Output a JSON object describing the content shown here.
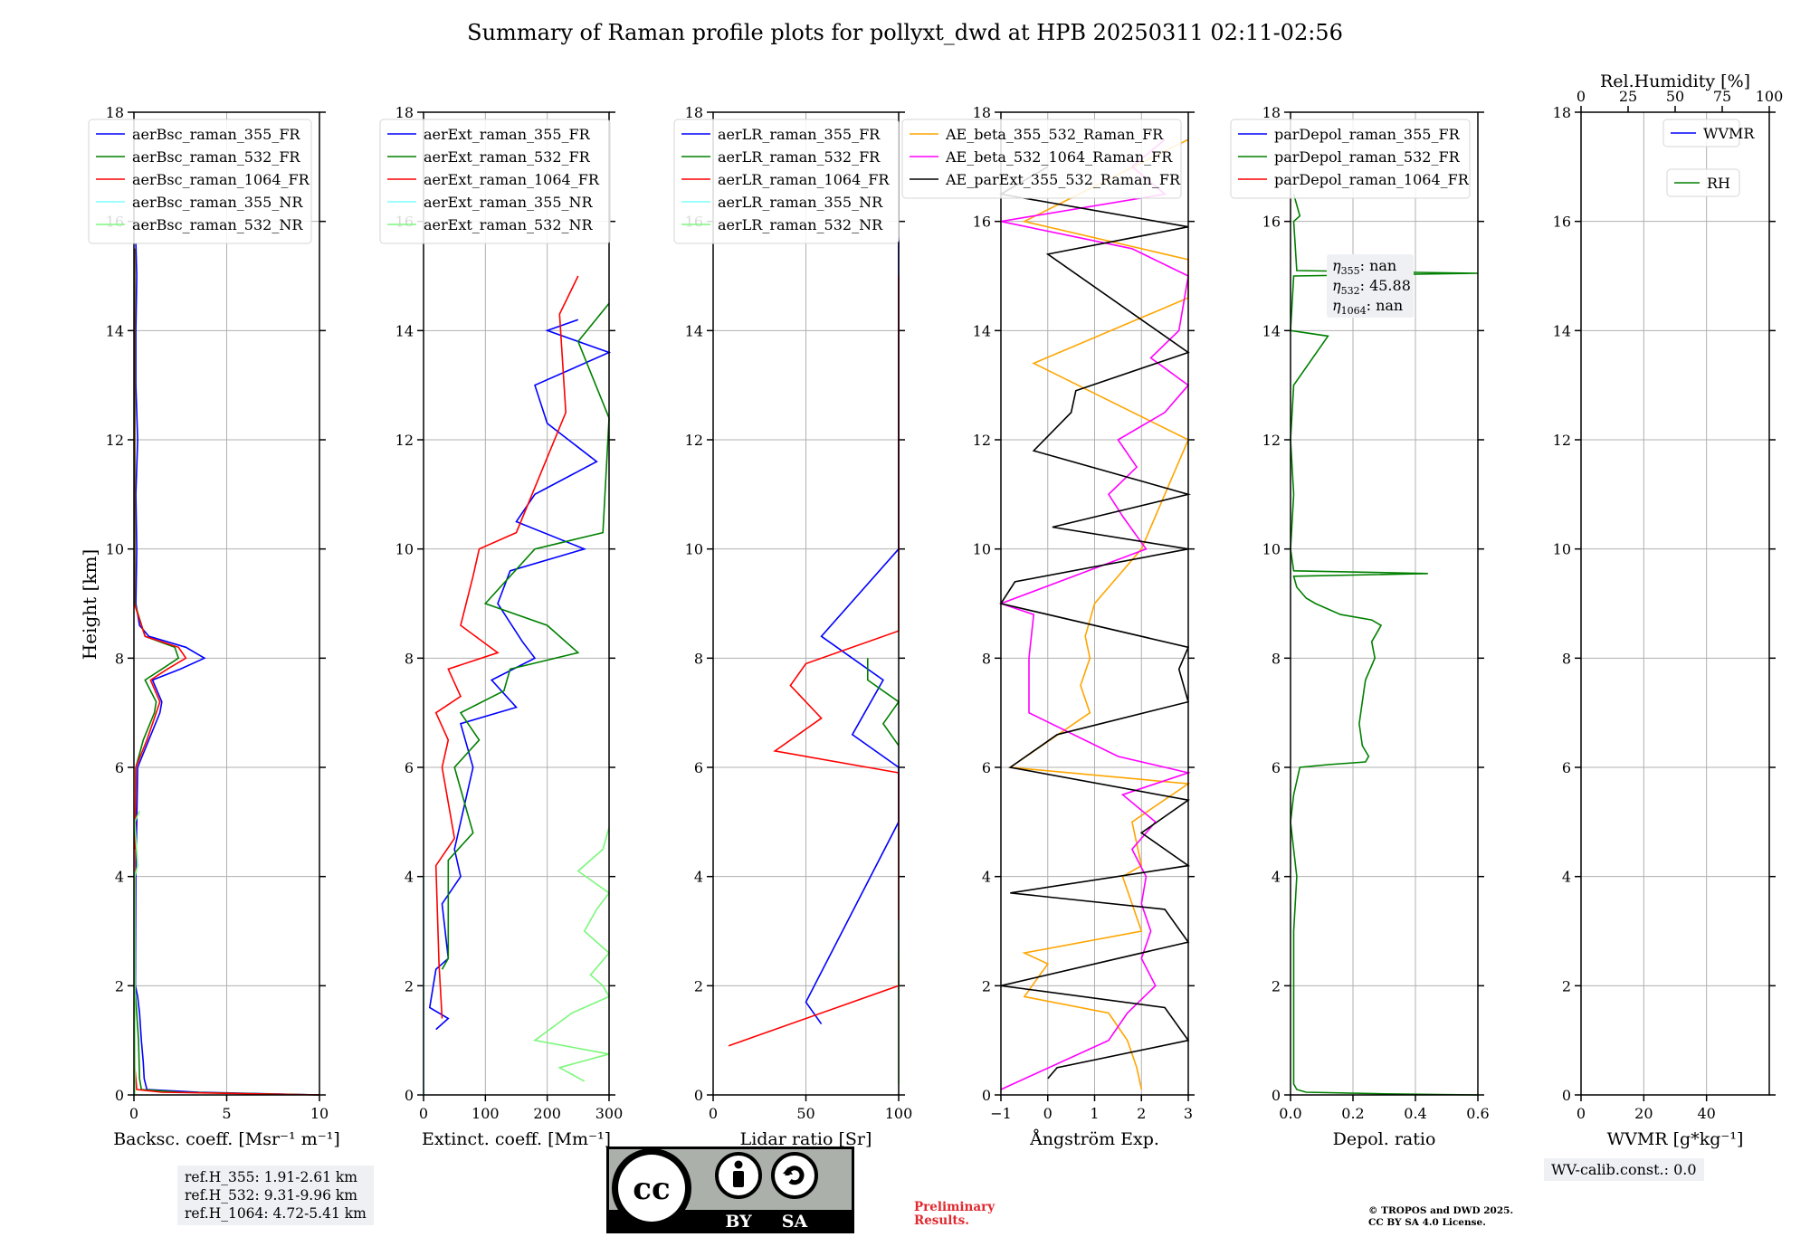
{
  "title": "Summary of Raman profile plots for pollyxt_dwd at HPB 20250311 02:11-02:56",
  "y_axis_label": "Height [km]",
  "ref_heights": [
    "ref.H_355: 1.91-2.61 km",
    "ref.H_532: 9.31-9.96 km",
    "ref.H_1064: 4.72-5.41 km"
  ],
  "eta_labels": {
    "355": "nan",
    "532": "45.88",
    "1064": "nan"
  },
  "wv_calib": "WV-calib.const.: 0.0",
  "preliminary": [
    "Preliminary",
    "Results."
  ],
  "copyright": [
    "© TROPOS and DWD 2025.",
    "CC BY SA 4.0 License."
  ],
  "cc_badge": {
    "left": "BY",
    "right": "SA",
    "mark": "cc"
  },
  "colors": {
    "blue": "#0000ff",
    "green": "#008000",
    "red": "#ff0000",
    "cyan": "#7fffff",
    "lightgreen": "#7cf77c",
    "orange": "#ffa500",
    "magenta": "#ff00ff",
    "black": "#000000",
    "grid": "#b0b0b0"
  },
  "chart_data": [
    {
      "type": "line",
      "xlabel": "Backsc. coeff. [Msr⁻¹ m⁻¹]",
      "ylabel": "Height [km]",
      "xlim": [
        0,
        10
      ],
      "ylim": [
        0,
        18
      ],
      "xticks": [
        "0",
        "5",
        "10"
      ],
      "yticks": [
        "0",
        "2",
        "4",
        "6",
        "8",
        "10",
        "12",
        "14",
        "16",
        "18"
      ],
      "grid": true,
      "legend": "top-left",
      "series": [
        {
          "name": "aerBsc_raman_355_FR",
          "color": "blue",
          "y": [
            0,
            0.05,
            0.1,
            0.3,
            0.6,
            1.0,
            1.5,
            1.8,
            2,
            4,
            6,
            6.5,
            7,
            7.2,
            7.6,
            7.8,
            8,
            8.2,
            8.4,
            8.6,
            9,
            10,
            11,
            12,
            13,
            14,
            15,
            15.6
          ],
          "x": [
            10,
            3.5,
            0.7,
            0.55,
            0.5,
            0.4,
            0.3,
            0.2,
            0.08,
            0.1,
            0.2,
            0.8,
            1.4,
            1.5,
            1.0,
            2.5,
            3.8,
            2.8,
            0.8,
            0.3,
            0.1,
            0.15,
            0.1,
            0.2,
            0.1,
            0.1,
            0.15,
            0.1
          ]
        },
        {
          "name": "aerBsc_raman_532_FR",
          "color": "green",
          "y": [
            0,
            0.05,
            0.1,
            0.3,
            1,
            2,
            4,
            6,
            6.5,
            7,
            7.2,
            7.6,
            7.8,
            8,
            8.2,
            8.4,
            9,
            10,
            12,
            14,
            15.5
          ],
          "x": [
            10,
            2.5,
            0.4,
            0.3,
            0.25,
            0.05,
            0.05,
            0.1,
            0.5,
            1.1,
            1.2,
            0.6,
            1.5,
            2.4,
            2.2,
            0.6,
            0.05,
            0.05,
            0.05,
            0.05,
            0.05
          ]
        },
        {
          "name": "aerBsc_raman_1064_FR",
          "color": "red",
          "y": [
            0,
            0.05,
            0.1,
            0.5,
            2,
            6,
            6.5,
            7,
            7.2,
            7.6,
            7.8,
            8,
            8.2,
            8.4,
            9,
            12,
            15.5
          ],
          "x": [
            10,
            1.5,
            0.15,
            0.05,
            0.02,
            0.1,
            0.7,
            1.2,
            1.4,
            0.9,
            1.8,
            2.8,
            2.4,
            0.6,
            0.02,
            0.02,
            0.02
          ]
        },
        {
          "name": "aerBsc_raman_355_NR",
          "color": "cyan",
          "y": [
            0,
            4.5
          ],
          "x": [
            0.02,
            0.02
          ]
        },
        {
          "name": "aerBsc_raman_532_NR",
          "color": "lightgreen",
          "y": [
            0,
            4,
            4.2,
            5,
            5.2
          ],
          "x": [
            0.05,
            0.05,
            0.2,
            0.05,
            0.3
          ]
        }
      ]
    },
    {
      "type": "line",
      "xlabel": "Extinct. coeff. [Mm⁻¹]",
      "xlim": [
        0,
        300
      ],
      "ylim": [
        0,
        18
      ],
      "xticks": [
        "0",
        "100",
        "200",
        "300"
      ],
      "yticks": [
        "0",
        "2",
        "4",
        "6",
        "8",
        "10",
        "12",
        "14",
        "16",
        "18"
      ],
      "grid": true,
      "legend": "top-left",
      "series": [
        {
          "name": "aerExt_raman_355_FR",
          "color": "blue",
          "y": [
            1.2,
            1.4,
            1.6,
            2.3,
            2.5,
            3.5,
            4,
            4.5,
            5,
            6,
            6.8,
            7.1,
            7.6,
            8,
            8.3,
            9,
            9.6,
            10,
            10.5,
            11,
            11.6,
            12.3,
            13,
            13.6,
            14,
            14.2
          ],
          "x": [
            20,
            40,
            10,
            20,
            40,
            30,
            60,
            50,
            60,
            80,
            60,
            150,
            110,
            180,
            160,
            120,
            140,
            260,
            150,
            180,
            280,
            200,
            180,
            300,
            200,
            250
          ]
        },
        {
          "name": "aerExt_raman_532_FR",
          "color": "green",
          "y": [
            2.3,
            2.5,
            4.3,
            4.8,
            6,
            6.5,
            7,
            7.4,
            7.8,
            8.1,
            8.6,
            9,
            10,
            10.3,
            12.4,
            13.8,
            14.5
          ],
          "x": [
            30,
            40,
            40,
            80,
            50,
            90,
            60,
            130,
            140,
            250,
            200,
            100,
            180,
            290,
            300,
            250,
            300
          ]
        },
        {
          "name": "aerExt_raman_1064_FR",
          "color": "red",
          "y": [
            1.4,
            2.4,
            4.2,
            4.7,
            6,
            6.5,
            7,
            7.3,
            7.8,
            8.1,
            8.6,
            9.5,
            10,
            10.3,
            12.5,
            14.3,
            15
          ],
          "x": [
            30,
            25,
            20,
            50,
            30,
            40,
            20,
            60,
            40,
            120,
            60,
            80,
            90,
            150,
            230,
            220,
            250
          ]
        },
        {
          "name": "aerExt_raman_355_NR",
          "color": "cyan",
          "y": [
            0,
            4
          ],
          "x": [
            0,
            0
          ]
        },
        {
          "name": "aerExt_raman_532_NR",
          "color": "lightgreen",
          "y": [
            0.25,
            0.5,
            0.75,
            1,
            1.5,
            1.8,
            2,
            2.2,
            2.6,
            3,
            3.4,
            3.7,
            4.1,
            4.5,
            4.9
          ],
          "x": [
            260,
            220,
            300,
            180,
            240,
            300,
            290,
            270,
            300,
            260,
            280,
            300,
            250,
            290,
            300
          ]
        }
      ]
    },
    {
      "type": "line",
      "xlabel": "Lidar ratio [Sr]",
      "xlim": [
        0,
        120
      ],
      "ylim": [
        0,
        18
      ],
      "xticks": [
        "0",
        "50",
        "100"
      ],
      "yticks": [
        "0",
        "2",
        "4",
        "6",
        "8",
        "10",
        "12",
        "14",
        "16",
        "18"
      ],
      "grid": true,
      "legend": "top-left",
      "series": [
        {
          "name": "aerLR_raman_355_FR",
          "color": "blue",
          "y": [
            1.3,
            1.7,
            5,
            6,
            6.6,
            7.6,
            8.4,
            10,
            12.5,
            14,
            15.7
          ],
          "x": [
            70,
            60,
            120,
            120,
            90,
            110,
            70,
            120,
            120,
            120,
            120
          ]
        },
        {
          "name": "aerLR_raman_532_FR",
          "color": "green",
          "y": [
            6.4,
            6.8,
            7.2,
            7.6,
            8
          ],
          "x": [
            120,
            110,
            120,
            100,
            100
          ]
        },
        {
          "name": "aerLR_raman_1064_FR",
          "color": "red",
          "y": [
            0.9,
            2,
            3,
            3.5,
            4,
            5.3,
            5.9,
            6.3,
            6.9,
            7.5,
            7.9,
            8.5,
            9,
            9.6,
            10.7,
            11.2,
            12,
            12.5,
            13.3,
            14,
            15
          ],
          "x": [
            10,
            120,
            120,
            120,
            120,
            120,
            120,
            40,
            70,
            50,
            60,
            120,
            120,
            120,
            120,
            120,
            120,
            120,
            120,
            120,
            120
          ]
        },
        {
          "name": "aerLR_raman_355_NR",
          "color": "cyan",
          "y": [
            2.5,
            2.8,
            3.2
          ],
          "x": [
            120,
            120,
            120
          ]
        },
        {
          "name": "aerLR_raman_532_NR",
          "color": "lightgreen",
          "y": [
            0.2,
            0.6,
            0.8,
            1.1,
            1.5,
            1.9,
            2.2,
            2.6
          ],
          "x": [
            120,
            120,
            120,
            120,
            120,
            120,
            120,
            120
          ]
        }
      ]
    },
    {
      "type": "line",
      "xlabel": "Ångström Exp.",
      "xlim": [
        -1,
        3
      ],
      "ylim": [
        0,
        18
      ],
      "xticks": [
        "−1",
        "0",
        "1",
        "2",
        "3"
      ],
      "yticks": [
        "0",
        "2",
        "4",
        "6",
        "8",
        "10",
        "12",
        "14",
        "16",
        "18"
      ],
      "grid": true,
      "legend": "top-center",
      "series": [
        {
          "name": "AE_beta_355_532_Raman_FR",
          "color": "orange",
          "y": [
            0.1,
            0.5,
            1,
            1.5,
            1.8,
            2.4,
            2.6,
            3,
            4,
            4.2,
            5,
            5.7,
            6,
            7,
            7.5,
            8,
            8.4,
            9,
            10,
            11,
            12,
            13.4,
            14.6,
            15.3,
            16,
            17.5
          ],
          "x": [
            2,
            1.9,
            1.7,
            1.3,
            -0.5,
            0,
            -0.5,
            2,
            1.6,
            2,
            1.8,
            3,
            -0.8,
            0.9,
            0.7,
            0.9,
            0.8,
            1,
            2,
            2.5,
            3,
            -0.3,
            3,
            3,
            -0.5,
            3
          ]
        },
        {
          "name": "AE_beta_532_1064_Raman_FR",
          "color": "magenta",
          "y": [
            0.1,
            1,
            1.5,
            2,
            2.5,
            3,
            3.5,
            4,
            4.5,
            5,
            5.5,
            5.9,
            6.2,
            7,
            8,
            8.8,
            9,
            10,
            10.6,
            11,
            11.5,
            12,
            12.5,
            13,
            13.5,
            14,
            15,
            15.5,
            16,
            16.5,
            17,
            17.5
          ],
          "x": [
            -1,
            1.3,
            1.7,
            2.3,
            2,
            2.2,
            2,
            2.1,
            1.8,
            2.3,
            1.6,
            3,
            1.5,
            -0.4,
            -0.4,
            -0.3,
            -1,
            2.1,
            1.6,
            1.3,
            1.9,
            1.5,
            2.5,
            3,
            2.2,
            2.8,
            3,
            1.8,
            -1,
            2.5,
            1.8,
            2.5
          ]
        },
        {
          "name": "AE_parExt_355_532_Raman_FR",
          "color": "black",
          "y": [
            0.3,
            0.5,
            1,
            1.6,
            2,
            2.8,
            3.4,
            3.7,
            4.2,
            4.8,
            5.4,
            6,
            6.6,
            7.2,
            7.8,
            8.2,
            9,
            9.4,
            10,
            10.4,
            11,
            11.8,
            12.5,
            12.9,
            13.6,
            15.4,
            15.9,
            16.5,
            17
          ],
          "x": [
            0,
            0.2,
            3,
            2.5,
            -1,
            3,
            2.5,
            -0.8,
            3,
            2,
            3,
            -0.8,
            0.2,
            3,
            2.8,
            3,
            -1,
            -0.7,
            3,
            0.1,
            3,
            -0.3,
            0.5,
            0.6,
            3,
            0,
            3,
            -1,
            0
          ]
        }
      ]
    },
    {
      "type": "line",
      "xlabel": "Depol. ratio",
      "xlim": [
        0,
        0.6
      ],
      "ylim": [
        0,
        18
      ],
      "xticks": [
        "0.0",
        "0.2",
        "0.4",
        "0.6"
      ],
      "yticks": [
        "0",
        "2",
        "4",
        "6",
        "8",
        "10",
        "12",
        "14",
        "16",
        "18"
      ],
      "grid": true,
      "legend": "top-left",
      "series": [
        {
          "name": "parDepol_raman_355_FR",
          "color": "blue",
          "y": [],
          "x": []
        },
        {
          "name": "parDepol_raman_532_FR",
          "color": "green",
          "y": [
            0,
            0.02,
            0.05,
            0.1,
            0.2,
            0.5,
            1,
            2,
            3,
            4,
            5,
            5.5,
            6,
            6.05,
            6.1,
            6.2,
            6.4,
            6.8,
            7.2,
            7.6,
            8,
            8.3,
            8.5,
            8.6,
            8.7,
            8.8,
            9.0,
            9.1,
            9.3,
            9.5,
            9.55,
            9.6,
            10,
            11,
            12,
            13,
            13.9,
            14,
            15,
            15.05,
            15.1,
            16,
            16.1,
            16.5
          ],
          "x": [
            0.6,
            0.3,
            0.05,
            0.02,
            0.01,
            0.01,
            0.01,
            0.01,
            0.01,
            0.02,
            0.0,
            0.01,
            0.03,
            0.12,
            0.24,
            0.25,
            0.23,
            0.22,
            0.23,
            0.24,
            0.27,
            0.26,
            0.28,
            0.29,
            0.26,
            0.16,
            0.08,
            0.05,
            0.02,
            0.01,
            0.44,
            0.01,
            0.0,
            0.01,
            0.0,
            0.01,
            0.12,
            0.0,
            0.01,
            0.6,
            0.02,
            0.01,
            0.03,
            0.01
          ]
        },
        {
          "name": "parDepol_raman_1064_FR",
          "color": "red",
          "y": [],
          "x": []
        }
      ]
    },
    {
      "type": "line",
      "xlabel": "WVMR [g*kg⁻¹]",
      "x2label": "Rel.Humidity [%]",
      "xlim": [
        0,
        60
      ],
      "x2lim": [
        0,
        100
      ],
      "ylim": [
        0,
        18
      ],
      "xticks": [
        "0",
        "20",
        "40"
      ],
      "x2ticks": [
        "0",
        "25",
        "50",
        "75",
        "100"
      ],
      "yticks": [
        "0",
        "2",
        "4",
        "6",
        "8",
        "10",
        "12",
        "14",
        "16",
        "18"
      ],
      "grid": true,
      "legend": "top-right",
      "series": [
        {
          "name": "WVMR",
          "color": "blue",
          "y": [],
          "x": []
        },
        {
          "name": "RH",
          "color": "green",
          "y": [],
          "x": []
        }
      ]
    }
  ]
}
